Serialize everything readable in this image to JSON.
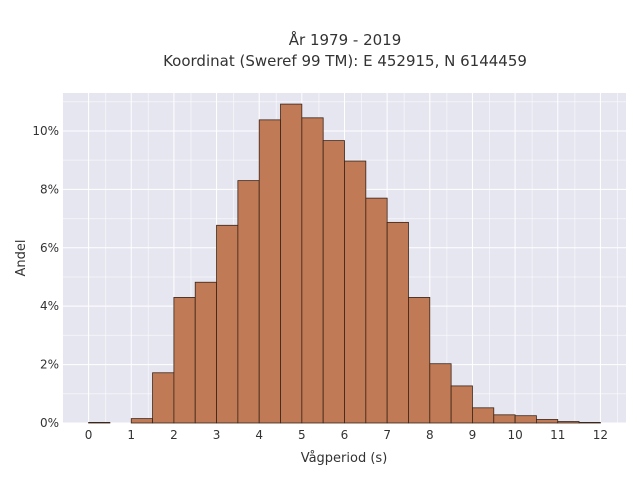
{
  "chart_data": {
    "type": "bar",
    "title_lines": [
      "År 1979 - 2019",
      "Koordinat (Sweref 99 TM): E 452915, N 6144459"
    ],
    "xlabel": "Vågperiod (s)",
    "ylabel": "Andel",
    "x_ticks": [
      0,
      1,
      2,
      3,
      4,
      5,
      6,
      7,
      8,
      9,
      10,
      11,
      12
    ],
    "y_ticks": [
      0,
      2,
      4,
      6,
      8,
      10
    ],
    "y_tick_suffix": "%",
    "xlim": [
      -0.6,
      12.6
    ],
    "ylim": [
      0,
      11.3
    ],
    "bin_width": 0.5,
    "bin_starts": [
      0,
      0.5,
      1,
      1.5,
      2,
      2.5,
      3,
      3.5,
      4,
      4.5,
      5,
      5.5,
      6,
      6.5,
      7,
      7.5,
      8,
      8.5,
      9,
      9.5,
      10,
      10.5,
      11,
      11.5
    ],
    "values": [
      0.02,
      0,
      0.15,
      1.72,
      4.3,
      4.82,
      6.77,
      8.3,
      10.38,
      10.92,
      10.45,
      9.67,
      8.97,
      7.7,
      6.87,
      4.3,
      2.03,
      1.27,
      0.52,
      0.28,
      0.25,
      0.12,
      0.05,
      0.02
    ],
    "colors": {
      "bar": "#c07a55",
      "bar_edge": "#3a2418",
      "plot_bg": "#e6e6f0",
      "grid": "#ffffff"
    },
    "grid": true
  }
}
